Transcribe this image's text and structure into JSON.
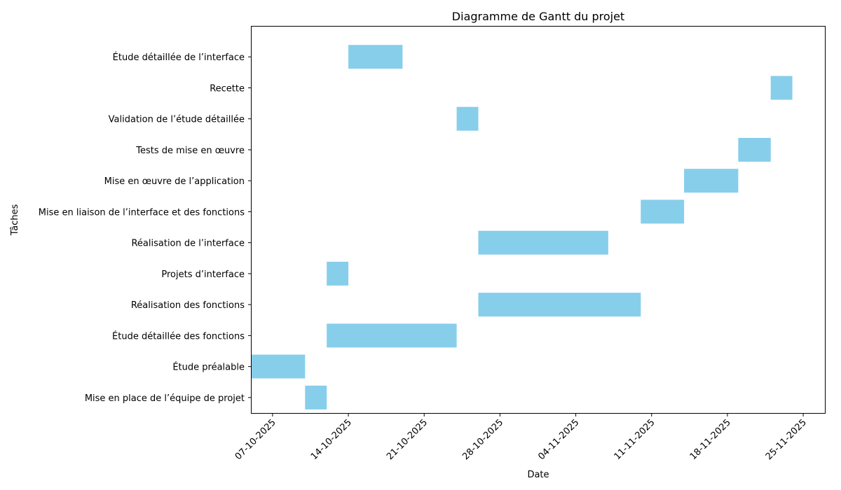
{
  "chart_data": {
    "type": "gantt",
    "title": "Diagramme de Gantt du projet",
    "xlabel": "Date",
    "ylabel": "Tâches",
    "bar_color": "#87CEEB",
    "grid": false,
    "xlim": [
      "2025-10-05",
      "2025-11-27"
    ],
    "x_ticks": [
      {
        "date": "2025-10-07",
        "label": "07-10-2025"
      },
      {
        "date": "2025-10-14",
        "label": "14-10-2025"
      },
      {
        "date": "2025-10-21",
        "label": "21-10-2025"
      },
      {
        "date": "2025-10-28",
        "label": "28-10-2025"
      },
      {
        "date": "2025-11-04",
        "label": "04-11-2025"
      },
      {
        "date": "2025-11-11",
        "label": "11-11-2025"
      },
      {
        "date": "2025-11-18",
        "label": "18-11-2025"
      },
      {
        "date": "2025-11-25",
        "label": "25-11-2025"
      }
    ],
    "tasks": [
      {
        "name": "Étude détaillée de l’interface",
        "start": "2025-10-14",
        "end": "2025-10-19"
      },
      {
        "name": "Recette",
        "start": "2025-11-22",
        "end": "2025-11-24"
      },
      {
        "name": "Validation de l’étude détaillée",
        "start": "2025-10-24",
        "end": "2025-10-26"
      },
      {
        "name": "Tests de mise en œuvre",
        "start": "2025-11-19",
        "end": "2025-11-22"
      },
      {
        "name": "Mise en œuvre de l’application",
        "start": "2025-11-14",
        "end": "2025-11-19"
      },
      {
        "name": "Mise en liaison de l’interface et des fonctions",
        "start": "2025-11-10",
        "end": "2025-11-14"
      },
      {
        "name": "Réalisation de l’interface",
        "start": "2025-10-26",
        "end": "2025-11-07"
      },
      {
        "name": "Projets d’interface",
        "start": "2025-10-12",
        "end": "2025-10-14"
      },
      {
        "name": "Réalisation des fonctions",
        "start": "2025-10-26",
        "end": "2025-11-10"
      },
      {
        "name": "Étude détaillée des fonctions",
        "start": "2025-10-12",
        "end": "2025-10-24"
      },
      {
        "name": "Étude préalable",
        "start": "2025-10-05",
        "end": "2025-10-10"
      },
      {
        "name": "Mise en place de l’équipe de projet",
        "start": "2025-10-10",
        "end": "2025-10-12"
      }
    ]
  }
}
